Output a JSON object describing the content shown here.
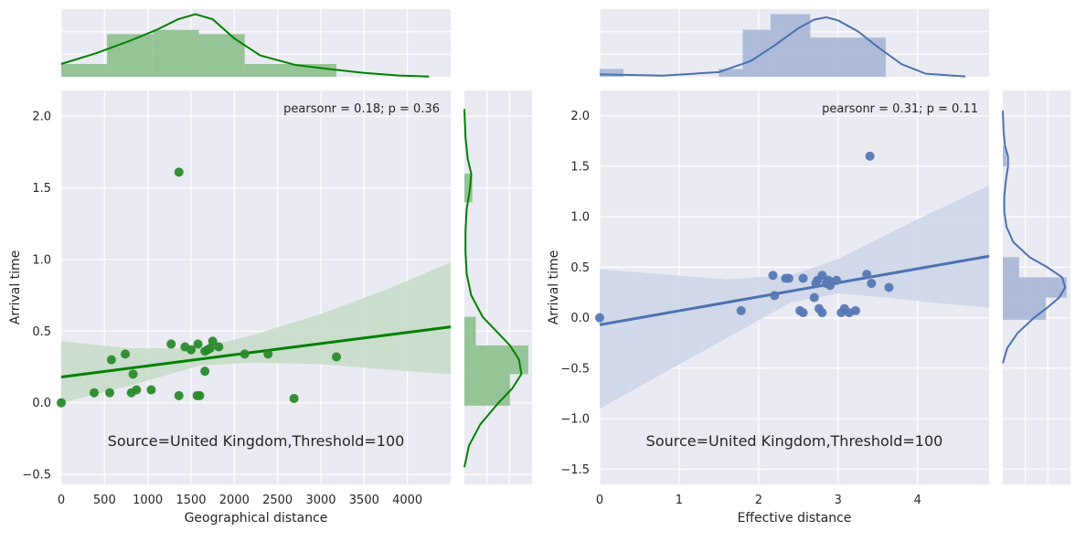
{
  "colors": {
    "background": "#eaeaf2",
    "grid": "#ffffff",
    "left_accent": "#008000",
    "right_accent": "#4c72b0"
  },
  "chart_data": [
    {
      "type": "scatter",
      "xlabel": "Geographical distance",
      "ylabel": "Arrival time",
      "xlim": [
        0,
        4500
      ],
      "ylim": [
        -0.57,
        2.18
      ],
      "xticks": [
        "0",
        "500",
        "1000",
        "1500",
        "2000",
        "2500",
        "3000",
        "3500",
        "4000"
      ],
      "yticks": [
        "−0.5",
        "0.0",
        "0.5",
        "1.0",
        "1.5",
        "2.0"
      ],
      "annotation": "pearsonr = 0.18; p = 0.36",
      "source_label": "Source=United Kingdom,Threshold=100",
      "grid": true,
      "points": [
        {
          "x": 0,
          "y": 0.0
        },
        {
          "x": 380,
          "y": 0.07
        },
        {
          "x": 560,
          "y": 0.07
        },
        {
          "x": 580,
          "y": 0.3
        },
        {
          "x": 740,
          "y": 0.34
        },
        {
          "x": 810,
          "y": 0.07
        },
        {
          "x": 830,
          "y": 0.2
        },
        {
          "x": 870,
          "y": 0.09
        },
        {
          "x": 1040,
          "y": 0.09
        },
        {
          "x": 1270,
          "y": 0.41
        },
        {
          "x": 1360,
          "y": 0.05
        },
        {
          "x": 1360,
          "y": 1.61
        },
        {
          "x": 1430,
          "y": 0.39
        },
        {
          "x": 1500,
          "y": 0.37
        },
        {
          "x": 1570,
          "y": 0.05
        },
        {
          "x": 1600,
          "y": 0.05
        },
        {
          "x": 1580,
          "y": 0.41
        },
        {
          "x": 1660,
          "y": 0.36
        },
        {
          "x": 1660,
          "y": 0.22
        },
        {
          "x": 1690,
          "y": 0.37
        },
        {
          "x": 1720,
          "y": 0.38
        },
        {
          "x": 1750,
          "y": 0.43
        },
        {
          "x": 1820,
          "y": 0.39
        },
        {
          "x": 2120,
          "y": 0.34
        },
        {
          "x": 2390,
          "y": 0.34
        },
        {
          "x": 2690,
          "y": 0.03
        },
        {
          "x": 3180,
          "y": 0.32
        }
      ],
      "regression": {
        "x0": 0,
        "y0": 0.18,
        "x1": 4500,
        "y1": 0.53
      },
      "confidence_band": {
        "x": [
          0,
          800,
          1600,
          2200,
          3000,
          3800,
          4500
        ],
        "lower": [
          0.0,
          0.12,
          0.26,
          0.28,
          0.27,
          0.23,
          0.2
        ],
        "upper": [
          0.43,
          0.38,
          0.38,
          0.47,
          0.62,
          0.8,
          0.98
        ]
      },
      "marginal_x": {
        "bins": [
          0,
          530,
          1060,
          1590,
          2120,
          2650,
          3180
        ],
        "counts": [
          3,
          10,
          11,
          10,
          3,
          3
        ],
        "kde_x": [
          0,
          400,
          800,
          1100,
          1350,
          1550,
          1750,
          2000,
          2300,
          2700,
          3100,
          3500,
          3900,
          4250
        ],
        "kde_y": [
          3,
          5.5,
          8.5,
          11,
          13.5,
          14.7,
          13.5,
          9,
          5,
          2.8,
          1.8,
          0.9,
          0.3,
          0.05
        ]
      },
      "marginal_y": {
        "bins": [
          -0.02,
          0.2,
          0.4,
          0.6,
          1.4,
          1.6
        ],
        "counts": [
          2.0,
          2.8,
          0.5,
          0.0,
          0.35
        ],
        "kde_y": [
          -0.45,
          -0.3,
          -0.15,
          0.0,
          0.1,
          0.2,
          0.3,
          0.4,
          0.5,
          0.6,
          0.75,
          0.9,
          1.05,
          1.2,
          1.35,
          1.5,
          1.6,
          1.7,
          1.85,
          2.05
        ],
        "kde_x": [
          0,
          0.2,
          0.7,
          1.5,
          2.1,
          2.5,
          2.4,
          2.0,
          1.4,
          0.8,
          0.3,
          0.1,
          0.05,
          0.05,
          0.1,
          0.25,
          0.3,
          0.15,
          0.05,
          0.0
        ]
      }
    },
    {
      "type": "scatter",
      "xlabel": "Effective distance",
      "ylabel": "Arrival time",
      "xlim": [
        0,
        4.9
      ],
      "ylim": [
        -1.65,
        2.25
      ],
      "xticks": [
        "0",
        "1",
        "2",
        "3",
        "4"
      ],
      "yticks": [
        "−1.5",
        "−1.0",
        "−0.5",
        "0.0",
        "0.5",
        "1.0",
        "1.5",
        "2.0"
      ],
      "annotation": "pearsonr = 0.31; p = 0.11",
      "source_label": "Source=United Kingdom,Threshold=100",
      "grid": true,
      "points": [
        {
          "x": 0,
          "y": 0.0
        },
        {
          "x": 1.78,
          "y": 0.07
        },
        {
          "x": 2.18,
          "y": 0.42
        },
        {
          "x": 2.2,
          "y": 0.22
        },
        {
          "x": 2.34,
          "y": 0.39
        },
        {
          "x": 2.38,
          "y": 0.39
        },
        {
          "x": 2.52,
          "y": 0.07
        },
        {
          "x": 2.56,
          "y": 0.05
        },
        {
          "x": 2.56,
          "y": 0.39
        },
        {
          "x": 2.7,
          "y": 0.2
        },
        {
          "x": 2.72,
          "y": 0.34
        },
        {
          "x": 2.74,
          "y": 0.37
        },
        {
          "x": 2.76,
          "y": 0.09
        },
        {
          "x": 2.8,
          "y": 0.05
        },
        {
          "x": 2.8,
          "y": 0.42
        },
        {
          "x": 2.85,
          "y": 0.34
        },
        {
          "x": 2.88,
          "y": 0.37
        },
        {
          "x": 2.9,
          "y": 0.32
        },
        {
          "x": 2.98,
          "y": 0.37
        },
        {
          "x": 3.04,
          "y": 0.05
        },
        {
          "x": 3.08,
          "y": 0.09
        },
        {
          "x": 3.14,
          "y": 0.05
        },
        {
          "x": 3.22,
          "y": 0.07
        },
        {
          "x": 3.36,
          "y": 0.43
        },
        {
          "x": 3.4,
          "y": 1.6
        },
        {
          "x": 3.42,
          "y": 0.34
        },
        {
          "x": 3.64,
          "y": 0.3
        }
      ],
      "regression": {
        "x0": 0,
        "y0": -0.07,
        "x1": 4.9,
        "y1": 0.61
      },
      "confidence_band": {
        "x": [
          0,
          0.8,
          1.6,
          2.4,
          3.0,
          3.6,
          4.2,
          4.9
        ],
        "lower": [
          -0.9,
          -0.55,
          -0.2,
          0.15,
          0.24,
          0.2,
          0.15,
          0.1
        ],
        "upper": [
          0.48,
          0.43,
          0.38,
          0.42,
          0.58,
          0.82,
          1.05,
          1.31
        ]
      },
      "marginal_x": {
        "bins": [
          0,
          0.3,
          1.5,
          1.8,
          2.15,
          2.65,
          2.95,
          3.6
        ],
        "counts": [
          1,
          0,
          1,
          6,
          8,
          5,
          5
        ],
        "kde_x": [
          0,
          0.8,
          1.5,
          1.9,
          2.2,
          2.5,
          2.7,
          2.85,
          3.0,
          3.25,
          3.5,
          3.8,
          4.1,
          4.6
        ],
        "kde_y": [
          0.3,
          0.15,
          0.6,
          2.0,
          4.0,
          6.2,
          7.3,
          7.6,
          7.2,
          5.8,
          3.8,
          1.6,
          0.4,
          0.05
        ]
      },
      "marginal_y": {
        "bins": [
          -0.02,
          0.2,
          0.4,
          0.6,
          1.5,
          1.7
        ],
        "counts": [
          2.9,
          4.3,
          1.1,
          0.0,
          0.25
        ],
        "kde_y": [
          -0.45,
          -0.3,
          -0.15,
          0.0,
          0.1,
          0.2,
          0.3,
          0.4,
          0.5,
          0.6,
          0.75,
          0.9,
          1.05,
          1.2,
          1.35,
          1.5,
          1.6,
          1.7,
          1.85,
          2.05
        ],
        "kde_x": [
          0,
          0.3,
          1.0,
          2.1,
          3.0,
          3.8,
          4.2,
          4.0,
          3.0,
          1.8,
          0.7,
          0.25,
          0.1,
          0.1,
          0.2,
          0.35,
          0.35,
          0.15,
          0.05,
          0.0
        ]
      }
    }
  ]
}
